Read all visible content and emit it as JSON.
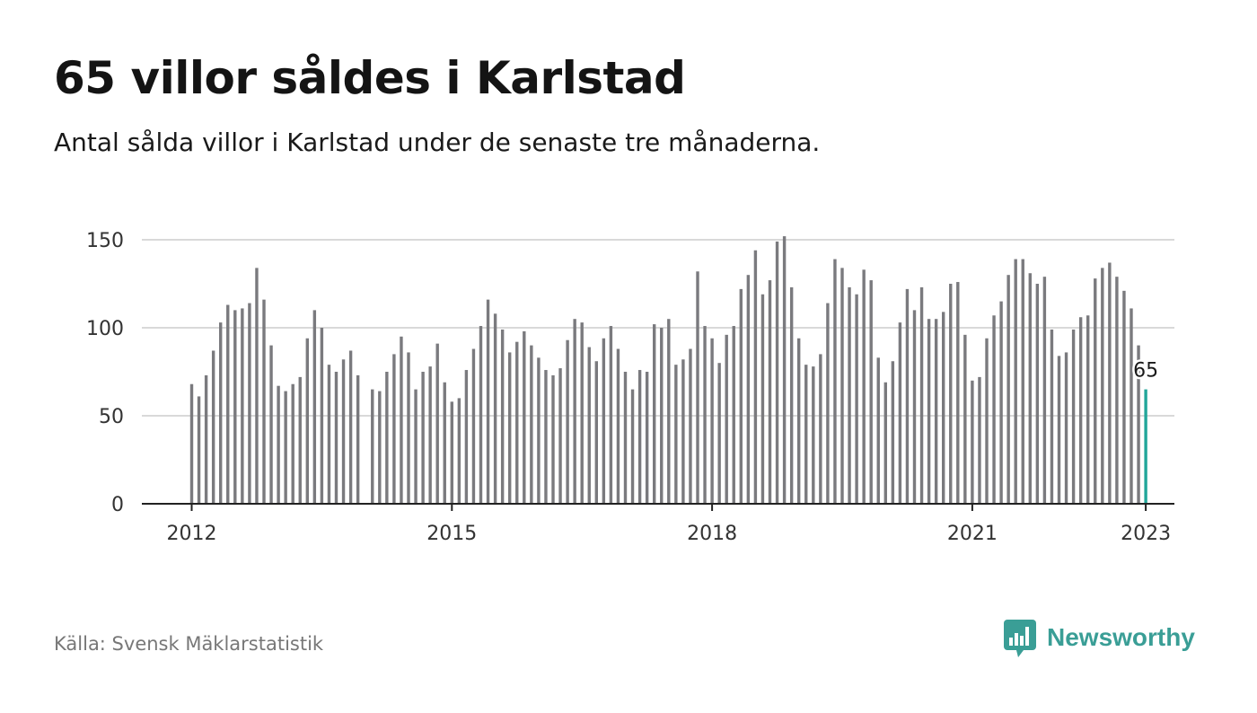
{
  "header": {
    "title": "65 villor såldes i Karlstad",
    "subtitle": "Antal sålda villor i Karlstad under de senaste tre månaderna."
  },
  "footer": {
    "source": "Källa: Svensk Mäklarstatistik",
    "brand": "Newsworthy"
  },
  "colors": {
    "bar": "#7a7a7e",
    "highlight": "#22a69a",
    "grid": "#d9d9d9",
    "axis": "#222222",
    "brand": "#3a9e96"
  },
  "chart_data": {
    "type": "bar",
    "title": "",
    "xlabel": "",
    "ylabel": "",
    "ylim": [
      0,
      150
    ],
    "yticks": [
      0,
      50,
      100,
      150
    ],
    "grid": true,
    "x_start": "2012-01",
    "x_ticks": [
      "2012",
      "2015",
      "2018",
      "2021",
      "2023"
    ],
    "highlight_label": "65",
    "series": [
      {
        "values": [
          68,
          61,
          73,
          87,
          103,
          113,
          110,
          111,
          114,
          134,
          116,
          90,
          67,
          64,
          68,
          72,
          94,
          110,
          100,
          79,
          75,
          82,
          87,
          73,
          null,
          65,
          64,
          75,
          85,
          95,
          86,
          65,
          75,
          78,
          91,
          69,
          58,
          60,
          76,
          88,
          101,
          116,
          108,
          99,
          86,
          92,
          98,
          90,
          83,
          76,
          73,
          77,
          93,
          105,
          103,
          89,
          81,
          94,
          101,
          88,
          75,
          65,
          76,
          75,
          102,
          100,
          105,
          79,
          82,
          88,
          132,
          101,
          94,
          80,
          96,
          101,
          122,
          130,
          144,
          119,
          127,
          149,
          152,
          123,
          94,
          79,
          78,
          85,
          114,
          139,
          134,
          123,
          119,
          133,
          127,
          83,
          69,
          81,
          103,
          122,
          110,
          123,
          105,
          105,
          109,
          125,
          126,
          96,
          70,
          72,
          94,
          107,
          115,
          130,
          139,
          139,
          131,
          125,
          129,
          99,
          84,
          86,
          99,
          106,
          107,
          128,
          134,
          137,
          129,
          121,
          111,
          90,
          65
        ]
      }
    ]
  }
}
